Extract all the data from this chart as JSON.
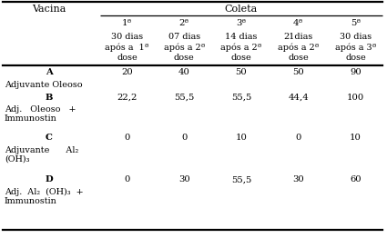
{
  "col_header_top": "Coleta",
  "col_header_left": "Vacina",
  "subheaders": [
    "1ª",
    "2ª",
    "3ª",
    "4ª",
    "5ª"
  ],
  "subheader_desc": [
    "30 dias\napós a  1ª\ndose",
    "07 dias\napós a 2ª\ndose",
    "14 dias\napós a 2ª\ndose",
    "21dias\napós a 2ª\ndose",
    "30 dias\napós a 3ª\ndose"
  ],
  "rows": [
    {
      "label_bold": "A",
      "label_desc": "Adjuvante Oleoso",
      "label_desc2": "",
      "values": [
        "20",
        "40",
        "50",
        "50",
        "90"
      ]
    },
    {
      "label_bold": "B",
      "label_desc": "Adj.   Oleoso   +",
      "label_desc2": "Immunostin",
      "values": [
        "22,2",
        "55,5",
        "55,5",
        "44,4",
        "100"
      ]
    },
    {
      "label_bold": "C",
      "label_desc": "Adjuvante      Al₂",
      "label_desc2": "(OH)₃",
      "values": [
        "0",
        "0",
        "10",
        "0",
        "10"
      ]
    },
    {
      "label_bold": "D",
      "label_desc": "Adj.  Al₂  (OH)₃  +",
      "label_desc2": "Immunostin",
      "values": [
        "0",
        "30",
        "55,5",
        "30",
        "60"
      ]
    }
  ],
  "bg_color": "#ffffff",
  "text_color": "#000000",
  "fs": 7.2,
  "fs_header": 8.0
}
